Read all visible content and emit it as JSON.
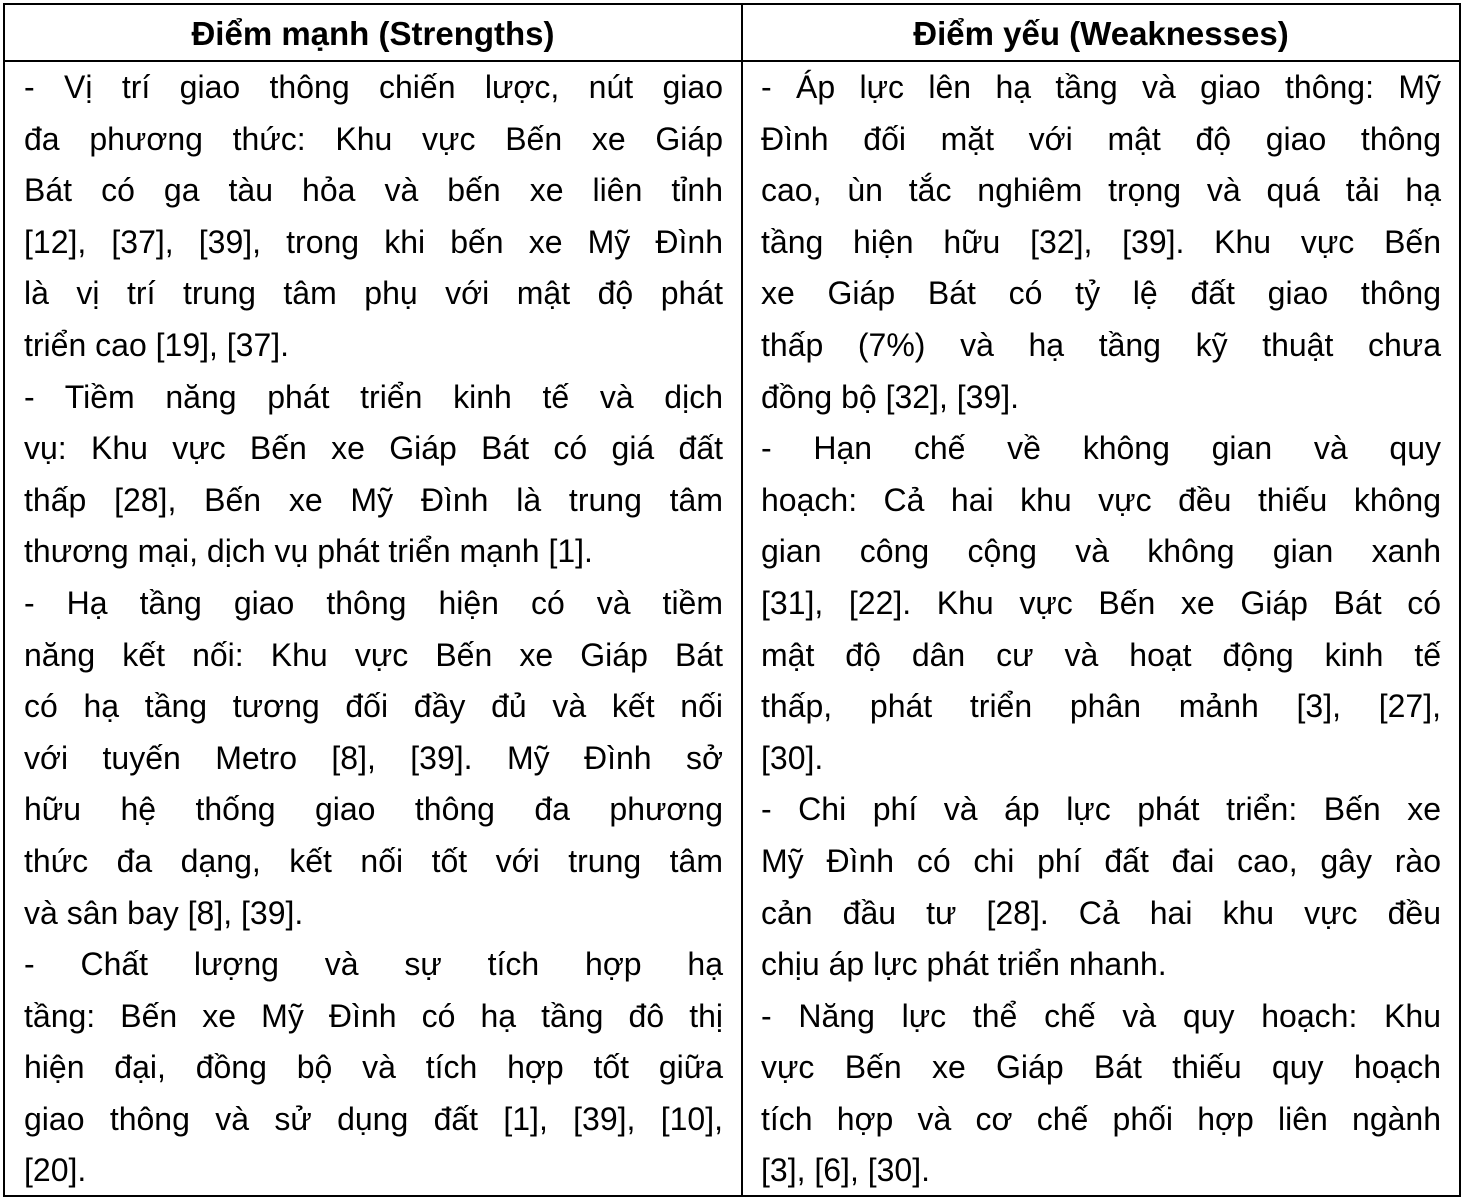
{
  "table": {
    "headers": [
      "Điểm mạnh (Strengths)",
      "Điểm yếu (Weaknesses)"
    ],
    "strengths": [
      [
        "- Vị trí giao thông chiến lược, nút giao",
        "đa phương thức: Khu vực Bến xe Giáp",
        "Bát có ga tàu hỏa và bến xe liên tỉnh",
        "[12], [37], [39], trong khi bến xe Mỹ Đình",
        "là vị trí trung tâm phụ với mật độ phát",
        "triển cao [19], [37]."
      ],
      [
        "- Tiềm năng phát triển kinh tế và dịch",
        "vụ: Khu vực Bến xe Giáp Bát có giá đất",
        "thấp [28], Bến xe Mỹ Đình là trung tâm",
        "thương mại, dịch vụ phát triển mạnh [1]."
      ],
      [
        "- Hạ tầng giao thông hiện có và tiềm",
        "năng kết nối: Khu vực Bến xe Giáp Bát",
        "có hạ tầng tương đối đầy đủ và kết nối",
        "với tuyến Metro [8], [39]. Mỹ Đình sở",
        "hữu hệ thống giao thông đa phương",
        "thức đa dạng, kết nối tốt với trung tâm",
        "và sân bay [8], [39]."
      ],
      [
        "- Chất lượng và sự tích hợp hạ",
        "tầng: Bến xe Mỹ Đình có hạ tầng đô thị",
        "hiện đại, đồng bộ và tích hợp tốt giữa",
        "giao thông và sử dụng đất [1], [39], [10],",
        "[20]."
      ]
    ],
    "weaknesses": [
      [
        "- Áp lực lên hạ tầng và giao thông: Mỹ",
        "Đình đối mặt với mật độ giao thông",
        "cao, ùn tắc nghiêm trọng và quá tải hạ",
        "tầng hiện hữu [32], [39]. Khu vực Bến",
        "xe Giáp Bát có tỷ lệ đất giao thông",
        "thấp (7%) và hạ tầng kỹ thuật chưa",
        "đồng bộ [32], [39]."
      ],
      [
        "- Hạn chế về không gian và quy",
        "hoạch: Cả hai khu vực đều thiếu không",
        "gian công cộng và không gian xanh",
        "[31], [22]. Khu vực Bến xe Giáp Bát có",
        "mật độ dân cư và hoạt động kinh tế",
        "thấp, phát triển phân mảnh [3], [27],",
        "[30]."
      ],
      [
        "- Chi phí và áp lực phát triển: Bến xe",
        "Mỹ Đình có chi phí đất đai cao, gây rào",
        "cản đầu tư [28]. Cả hai khu vực đều",
        "chịu áp lực phát triển nhanh."
      ],
      [
        "- Năng lực thể chế và quy hoạch: Khu",
        "vực Bến xe Giáp Bát thiếu quy hoạch",
        "tích hợp và cơ chế phối hợp liên ngành",
        "[3], [6], [30]."
      ]
    ]
  }
}
